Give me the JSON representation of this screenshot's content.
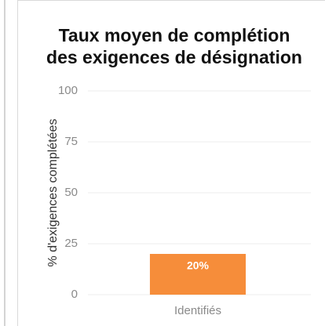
{
  "chart_data": {
    "type": "bar",
    "title": [
      "Taux moyen de complétion",
      "des exigences de désignation"
    ],
    "y_label": "% d'exigences complétées",
    "categories": [
      "Identifiés"
    ],
    "values": [
      20
    ],
    "value_labels": [
      "20%"
    ],
    "color": "#f68d3a",
    "ylim": [
      0,
      100
    ],
    "yticks": [
      0,
      25,
      50,
      75,
      100
    ],
    "grid": true
  }
}
